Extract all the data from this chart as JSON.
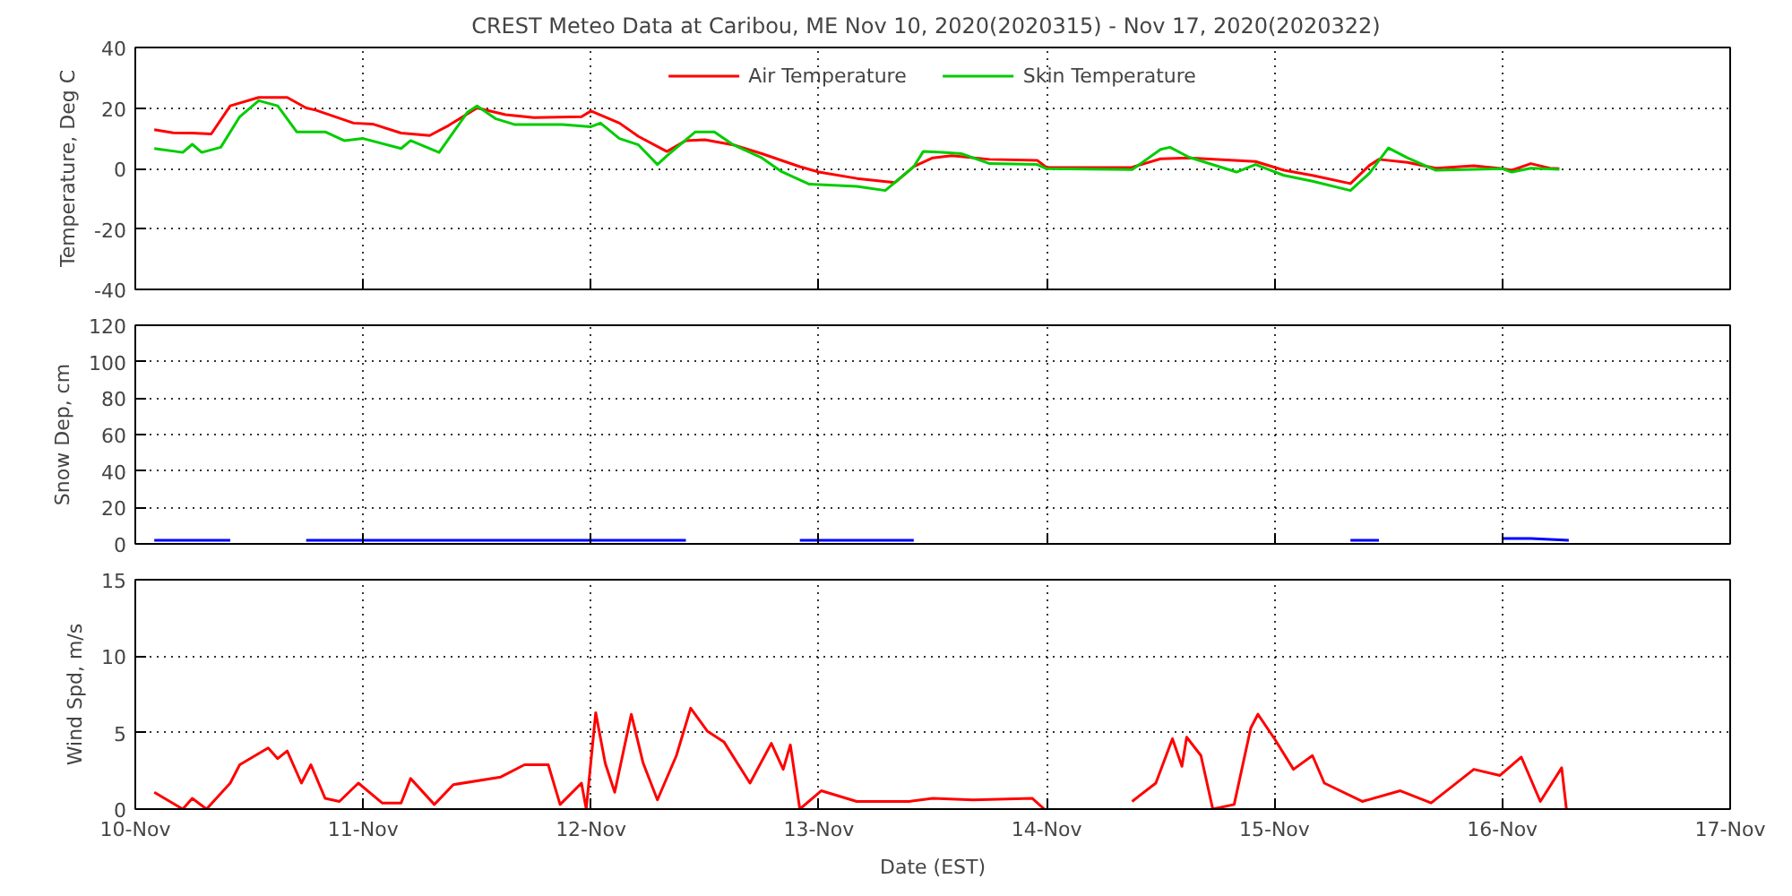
{
  "chart_data": [
    {
      "type": "line",
      "title": "CREST Meteo Data at Caribou, ME   Nov 10, 2020(2020315) - Nov 17, 2020(2020322)",
      "ylabel": "Temperature, Deg C",
      "xlim": [
        "2020-11-10",
        "2020-11-17"
      ],
      "xticks": [
        {
          "value": "2020-11-10",
          "label": null
        },
        {
          "value": "2020-11-11",
          "label": null
        },
        {
          "value": "2020-11-12",
          "label": null
        },
        {
          "value": "2020-11-13",
          "label": null
        },
        {
          "value": "2020-11-14",
          "label": null
        },
        {
          "value": "2020-11-15",
          "label": null
        },
        {
          "value": "2020-11-16",
          "label": null
        },
        {
          "value": "2020-11-17",
          "label": null
        }
      ],
      "ylim": [
        -40,
        40
      ],
      "yticks": [
        -40,
        -20,
        0,
        20,
        40
      ],
      "grid": true,
      "legend": "top",
      "tick_labels": "y",
      "marker": "none",
      "line_style": "solid",
      "series": [
        {
          "name": "Air Temperature",
          "color": "#ff0000",
          "x": [
            "2020-11-10T02:00",
            "2020-11-10T04:00",
            "2020-11-10T06:00",
            "2020-11-10T08:00",
            "2020-11-10T10:00",
            "2020-11-10T13:00",
            "2020-11-10T16:00",
            "2020-11-10T18:00",
            "2020-11-10T19:00",
            "2020-11-10T23:00",
            "2020-11-11T01:00",
            "2020-11-11T04:00",
            "2020-11-11T07:00",
            "2020-11-11T09:00",
            "2020-11-11T12:00",
            "2020-11-11T15:00",
            "2020-11-11T18:00",
            "2020-11-11T23:00",
            "2020-11-12T00:00",
            "2020-11-12T03:00",
            "2020-11-12T05:00",
            "2020-11-12T08:00",
            "2020-11-12T10:00",
            "2020-11-12T12:00",
            "2020-11-12T15:00",
            "2020-11-12T18:00",
            "2020-11-12T22:00",
            "2020-11-13T00:00",
            "2020-11-13T04:00",
            "2020-11-13T08:00",
            "2020-11-13T10:00",
            "2020-11-13T12:00",
            "2020-11-13T14:00",
            "2020-11-13T18:00",
            "2020-11-13T23:00",
            "2020-11-14T00:00",
            "2020-11-14T09:00",
            "2020-11-14T12:00",
            "2020-11-14T15:00",
            "2020-11-14T22:00",
            "2020-11-15T01:00",
            "2020-11-15T04:00",
            "2020-11-15T08:00",
            "2020-11-15T10:00",
            "2020-11-15T11:00",
            "2020-11-15T14:00",
            "2020-11-15T17:00",
            "2020-11-15T21:00",
            "2020-11-16T00:00",
            "2020-11-16T01:00",
            "2020-11-16T03:00",
            "2020-11-16T05:00",
            "2020-11-16T06:00"
          ],
          "values": [
            12.8,
            11.8,
            11.7,
            11.4,
            20.7,
            23.5,
            23.5,
            20,
            19.3,
            15,
            14.7,
            11.7,
            10.9,
            14.2,
            20,
            17.8,
            16.8,
            17.1,
            19,
            15,
            10.6,
            5.6,
            9.2,
            9.5,
            7.8,
            4.9,
            0.6,
            -1.2,
            -3.3,
            -4.7,
            0.6,
            3.5,
            4.2,
            3,
            2.7,
            0.3,
            0.4,
            3.2,
            3.5,
            2.3,
            -0.6,
            -2.3,
            -5,
            1,
            3,
            2,
            0.1,
            0.9,
            -0.1,
            -0.6,
            1.6,
            0.1,
            -0.1
          ]
        },
        {
          "name": "Skin Temperature",
          "color": "#00cc00",
          "x": [
            "2020-11-10T02:00",
            "2020-11-10T05:00",
            "2020-11-10T06:00",
            "2020-11-10T07:00",
            "2020-11-10T09:00",
            "2020-11-10T11:00",
            "2020-11-10T13:00",
            "2020-11-10T15:00",
            "2020-11-10T17:00",
            "2020-11-10T20:00",
            "2020-11-10T22:00",
            "2020-11-11T00:00",
            "2020-11-11T04:00",
            "2020-11-11T05:00",
            "2020-11-11T08:00",
            "2020-11-11T11:00",
            "2020-11-11T12:00",
            "2020-11-11T14:00",
            "2020-11-11T16:00",
            "2020-11-11T21:00",
            "2020-11-12T00:00",
            "2020-11-12T01:00",
            "2020-11-12T03:00",
            "2020-11-12T05:00",
            "2020-11-12T07:00",
            "2020-11-12T08:00",
            "2020-11-12T11:00",
            "2020-11-12T13:00",
            "2020-11-12T15:00",
            "2020-11-12T18:00",
            "2020-11-12T20:00",
            "2020-11-12T23:00",
            "2020-11-13T04:00",
            "2020-11-13T07:00",
            "2020-11-13T10:00",
            "2020-11-13T11:00",
            "2020-11-13T13:00",
            "2020-11-13T15:00",
            "2020-11-13T18:00",
            "2020-11-13T23:00",
            "2020-11-14T00:00",
            "2020-11-14T09:00",
            "2020-11-14T12:00",
            "2020-11-14T13:00",
            "2020-11-14T15:00",
            "2020-11-14T20:00",
            "2020-11-14T22:00",
            "2020-11-15T01:00",
            "2020-11-15T04:00",
            "2020-11-15T08:00",
            "2020-11-15T10:00",
            "2020-11-15T12:00",
            "2020-11-15T14:00",
            "2020-11-15T17:00",
            "2020-11-16T00:00",
            "2020-11-16T01:00",
            "2020-11-16T03:00",
            "2020-11-16T06:00"
          ],
          "values": [
            6.6,
            5.3,
            8,
            5.3,
            7,
            17.1,
            22.4,
            20.7,
            12.1,
            12.1,
            9.2,
            9.9,
            6.6,
            9.2,
            5.3,
            18.6,
            20.7,
            16.4,
            14.5,
            14.5,
            13.8,
            15,
            9.9,
            7.8,
            1.3,
            4.2,
            12.1,
            12.1,
            7.8,
            3.5,
            -0.9,
            -5.2,
            -5.9,
            -7.3,
            0.6,
            5.6,
            5.3,
            4.9,
            1.6,
            1.3,
            -0.1,
            -0.4,
            6.3,
            7,
            3.7,
            -1.2,
            1.3,
            -2.3,
            -4.2,
            -7.3,
            -1.6,
            6.8,
            3.5,
            -0.6,
            -0.1,
            -1.2,
            0.1,
            -0.3
          ]
        }
      ]
    },
    {
      "type": "line",
      "ylabel": "Snow Dep, cm",
      "xlim": [
        "2020-11-10",
        "2020-11-17"
      ],
      "xticks": [
        {
          "value": "2020-11-10",
          "label": null
        },
        {
          "value": "2020-11-11",
          "label": null
        },
        {
          "value": "2020-11-12",
          "label": null
        },
        {
          "value": "2020-11-13",
          "label": null
        },
        {
          "value": "2020-11-14",
          "label": null
        },
        {
          "value": "2020-11-15",
          "label": null
        },
        {
          "value": "2020-11-16",
          "label": null
        },
        {
          "value": "2020-11-17",
          "label": null
        }
      ],
      "ylim": [
        0,
        120
      ],
      "yticks": [
        0,
        20,
        40,
        60,
        80,
        100,
        120
      ],
      "grid": true,
      "tick_labels": "y",
      "marker": "none",
      "line_style": "solid",
      "series": [
        {
          "color": "#0000ff",
          "x": [
            "2020-11-10T02:00",
            "2020-11-10T10:00",
            "2020-11-10T14:00",
            "2020-11-10T18:00",
            "2020-11-11T12:00",
            "2020-11-11T13:00",
            "2020-11-12T10:00",
            "2020-11-12T16:00",
            "2020-11-12T22:00",
            "2020-11-13T10:00",
            "2020-11-14T12:00",
            "2020-11-15T08:00",
            "2020-11-15T11:00",
            "2020-11-15T18:00",
            "2020-11-16T00:00",
            "2020-11-16T03:00",
            "2020-11-16T07:00"
          ],
          "values": [
            2,
            2,
            null,
            2,
            2,
            2,
            2,
            null,
            2,
            2,
            null,
            2,
            2,
            null,
            3,
            3,
            2
          ]
        }
      ]
    },
    {
      "type": "line",
      "ylabel": "Wind Spd, m/s",
      "xlabel": "Date (EST)",
      "xlim": [
        "2020-11-10",
        "2020-11-17"
      ],
      "xticks": [
        {
          "value": "2020-11-10",
          "label": "10-Nov"
        },
        {
          "value": "2020-11-11",
          "label": "11-Nov"
        },
        {
          "value": "2020-11-12",
          "label": "12-Nov"
        },
        {
          "value": "2020-11-13",
          "label": "13-Nov"
        },
        {
          "value": "2020-11-14",
          "label": "14-Nov"
        },
        {
          "value": "2020-11-15",
          "label": "15-Nov"
        },
        {
          "value": "2020-11-16",
          "label": "16-Nov"
        },
        {
          "value": "2020-11-17",
          "label": "17-Nov"
        }
      ],
      "ylim": [
        0,
        15
      ],
      "yticks": [
        0,
        5,
        10,
        15
      ],
      "grid": true,
      "marker": "none",
      "line_style": "solid",
      "series": [
        {
          "color": "#ff0000",
          "x": [
            "2020-11-10T02:00",
            "2020-11-10T05:00",
            "2020-11-10T06:00",
            "2020-11-10T07:30",
            "2020-11-10T10:00",
            "2020-11-10T11:00",
            "2020-11-10T14:00",
            "2020-11-10T15:00",
            "2020-11-10T16:00",
            "2020-11-10T17:30",
            "2020-11-10T18:30",
            "2020-11-10T20:00",
            "2020-11-10T21:30",
            "2020-11-10T23:30",
            "2020-11-11T02:00",
            "2020-11-11T04:00",
            "2020-11-11T05:00",
            "2020-11-11T07:30",
            "2020-11-11T09:30",
            "2020-11-11T14:30",
            "2020-11-11T17:00",
            "2020-11-11T19:30",
            "2020-11-11T20:45",
            "2020-11-11T23:00",
            "2020-11-11T23:30",
            "2020-11-12T00:30",
            "2020-11-12T01:30",
            "2020-11-12T02:30",
            "2020-11-12T04:15",
            "2020-11-12T05:30",
            "2020-11-12T07:00",
            "2020-11-12T09:00",
            "2020-11-12T10:30",
            "2020-11-12T12:15",
            "2020-11-12T14:00",
            "2020-11-12T16:45",
            "2020-11-12T19:00",
            "2020-11-12T20:15",
            "2020-11-12T21:00",
            "2020-11-12T22:00",
            "2020-11-13T00:15",
            "2020-11-13T04:00",
            "2020-11-13T09:30",
            "2020-11-13T12:00",
            "2020-11-13T16:15",
            "2020-11-13T22:30",
            "2020-11-13T23:45",
            "2020-11-14T02:30",
            "2020-11-14T09:00",
            "2020-11-14T11:30",
            "2020-11-14T13:15",
            "2020-11-14T14:15",
            "2020-11-14T14:45",
            "2020-11-14T16:15",
            "2020-11-14T17:30",
            "2020-11-14T19:45",
            "2020-11-14T21:30",
            "2020-11-14T22:15",
            "2020-11-15T00:00",
            "2020-11-15T02:00",
            "2020-11-15T04:00",
            "2020-11-15T05:15",
            "2020-11-15T09:15",
            "2020-11-15T13:15",
            "2020-11-15T16:30",
            "2020-11-15T21:00",
            "2020-11-15T23:45",
            "2020-11-16T02:00",
            "2020-11-16T04:00",
            "2020-11-16T06:15",
            "2020-11-16T06:45"
          ],
          "values": [
            1.1,
            0,
            0.7,
            0,
            1.7,
            2.9,
            4,
            3.3,
            3.8,
            1.7,
            2.9,
            0.7,
            0.5,
            1.7,
            0.4,
            0.4,
            2,
            0.3,
            1.6,
            2.1,
            2.9,
            2.9,
            0.3,
            1.7,
            0,
            6.3,
            3,
            1.1,
            6.2,
            3,
            0.6,
            3.5,
            6.6,
            5.1,
            4.4,
            1.7,
            4.3,
            2.6,
            4.2,
            0,
            1.2,
            0.5,
            0.5,
            0.7,
            0.6,
            0.7,
            0,
            null,
            0.5,
            1.7,
            4.6,
            2.8,
            4.7,
            3.5,
            0,
            0.3,
            5.3,
            6.2,
            4.6,
            2.6,
            3.5,
            1.7,
            0.5,
            1.2,
            0.4,
            2.6,
            2.2,
            3.4,
            0.5,
            2.7,
            0
          ]
        }
      ]
    }
  ]
}
